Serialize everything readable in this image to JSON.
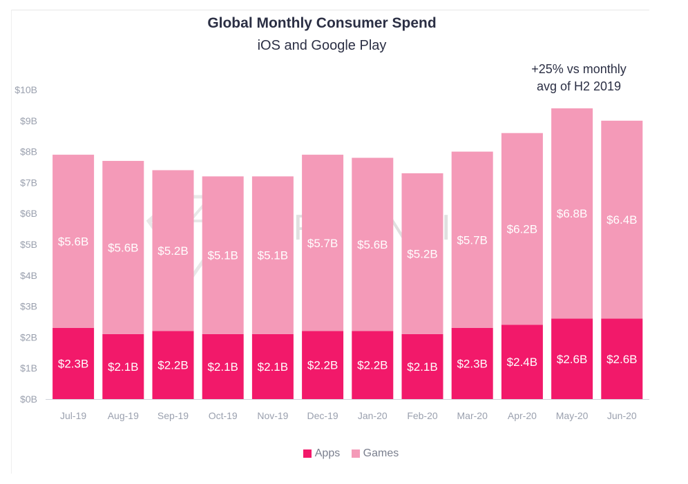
{
  "chart_data": {
    "type": "bar",
    "stacked": true,
    "title": "Global Monthly Consumer Spend",
    "subtitle": "iOS and Google Play",
    "annotation": "+25% vs monthly\navg of H2 2019",
    "watermark": "APP ANNIE",
    "categories": [
      "Jul-19",
      "Aug-19",
      "Sep-19",
      "Oct-19",
      "Nov-19",
      "Dec-19",
      "Jan-20",
      "Feb-20",
      "Mar-20",
      "Apr-20",
      "May-20",
      "Jun-20"
    ],
    "series": [
      {
        "name": "Apps",
        "color": "#f2196a",
        "values": [
          2.3,
          2.1,
          2.2,
          2.1,
          2.1,
          2.2,
          2.2,
          2.1,
          2.3,
          2.4,
          2.6,
          2.6
        ],
        "labels": [
          "$2.3B",
          "$2.1B",
          "$2.2B",
          "$2.1B",
          "$2.1B",
          "$2.2B",
          "$2.2B",
          "$2.1B",
          "$2.3B",
          "$2.4B",
          "$2.6B",
          "$2.6B"
        ]
      },
      {
        "name": "Games",
        "color": "#f49ab8",
        "values": [
          5.6,
          5.6,
          5.2,
          5.1,
          5.1,
          5.7,
          5.6,
          5.2,
          5.7,
          6.2,
          6.8,
          6.4
        ],
        "labels": [
          "$5.6B",
          "$5.6B",
          "$5.2B",
          "$5.1B",
          "$5.1B",
          "$5.7B",
          "$5.6B",
          "$5.2B",
          "$5.7B",
          "$6.2B",
          "$6.8B",
          "$6.4B"
        ]
      }
    ],
    "ylim": [
      0,
      10
    ],
    "yticks": [
      "$0B",
      "$1B",
      "$2B",
      "$3B",
      "$4B",
      "$5B",
      "$6B",
      "$7B",
      "$8B",
      "$9B",
      "$10B"
    ],
    "grid": false,
    "legend": "bottom-center"
  }
}
